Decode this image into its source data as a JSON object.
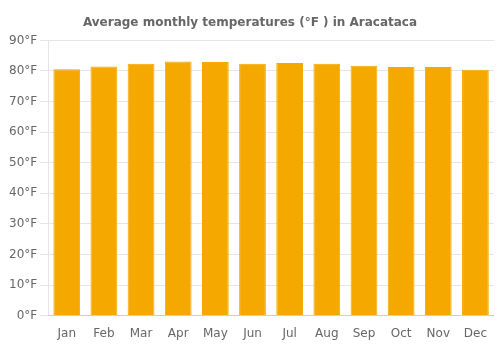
{
  "chart_data": {
    "type": "bar",
    "title": "Average monthly temperatures (°F ) in Aracataca",
    "categories": [
      "Jan",
      "Feb",
      "Mar",
      "Apr",
      "May",
      "Jun",
      "Jul",
      "Aug",
      "Sep",
      "Oct",
      "Nov",
      "Dec"
    ],
    "values": [
      80.6,
      81.5,
      82.4,
      83.1,
      82.9,
      82.4,
      82.6,
      82.4,
      81.7,
      81.3,
      81.3,
      80.4
    ],
    "color": "#F5A800",
    "ylim": [
      0,
      90
    ],
    "yticks": [
      {
        "value": 0,
        "label": "0°F"
      },
      {
        "value": 10,
        "label": "10°F"
      },
      {
        "value": 20,
        "label": "20°F"
      },
      {
        "value": 30,
        "label": "30°F"
      },
      {
        "value": 40,
        "label": "40°F"
      },
      {
        "value": 50,
        "label": "50°F"
      },
      {
        "value": 60,
        "label": "60°F"
      },
      {
        "value": 70,
        "label": "70°F"
      },
      {
        "value": 80,
        "label": "80°F"
      },
      {
        "value": 90,
        "label": "90°F"
      }
    ],
    "grid": true
  }
}
